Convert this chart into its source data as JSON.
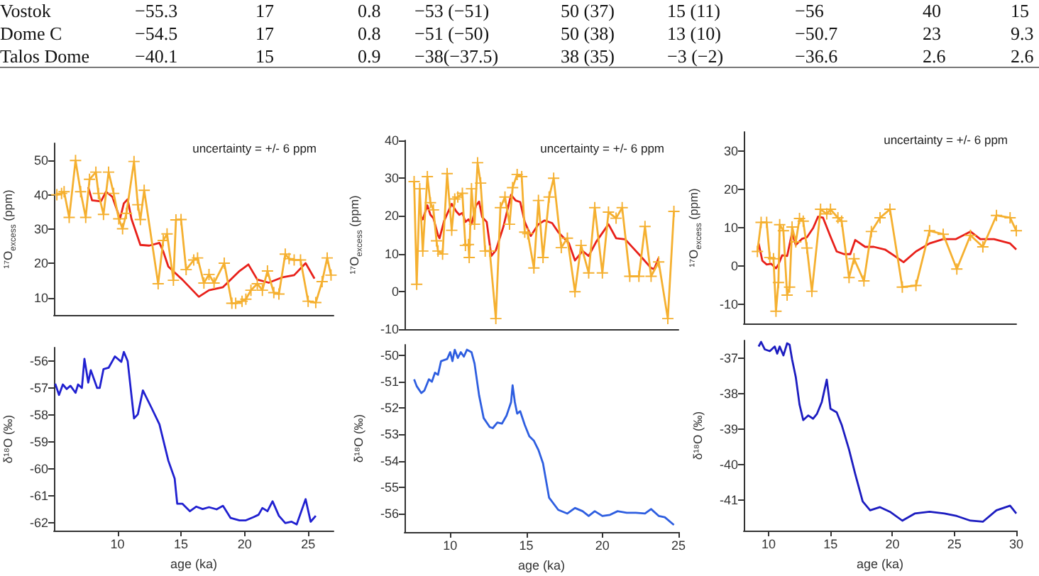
{
  "chart_data": [
    {
      "type": "other",
      "annotations": [
        "Vostok",
        "−55.3",
        "17",
        "0.8",
        "−53 (−51)",
        "50 (37)",
        "15 (11)",
        "−56",
        "40",
        "15",
        "Dome C",
        "−54.5",
        "17",
        "0.8",
        "−51 (−50)",
        "50 (38)",
        "13 (10)",
        "−50.7",
        "23",
        "9.3",
        "Talos Dome",
        "−40.1",
        "15",
        "0.9",
        "−38(−37.5)",
        "38 (35)",
        "−3 (−2)",
        "−36.6",
        "2.6",
        "2.6"
      ]
    },
    {
      "type": "line",
      "ylabel": "¹⁷O$_{excess}$ (ppm)",
      "xlim": [
        5,
        27
      ],
      "xticks": [
        10,
        15,
        20,
        25
      ],
      "ylim": [
        5,
        55
      ],
      "yticks": [
        10,
        20,
        30,
        40,
        50
      ],
      "tick_labels": "y",
      "annotations": [
        "uncertainty = +/- 6 ppm"
      ],
      "series": [
        {
          "color": "#f5b030",
          "marker": "cross",
          "x": [
            5.23,
            5.6,
            5.8,
            6.2,
            6.7,
            7.1,
            7.5,
            7.8,
            8.3,
            8.5,
            8.9,
            9.3,
            9.7,
            10.1,
            10.4,
            10.7,
            11.3,
            11.6,
            11.8,
            12.1,
            13.2,
            13.6,
            13.9,
            14.4,
            14.6,
            15.0,
            15.4,
            16.0,
            16.3,
            16.8,
            17.2,
            17.6,
            18.4,
            19.0,
            19.3,
            19.8,
            20.1,
            20.5,
            21.0,
            21.4,
            21.8,
            22.3,
            22.7,
            23.2,
            23.5,
            23.9,
            24.4,
            25.0,
            25.6,
            26.1,
            26.5,
            26.8
          ],
          "values": [
            40,
            40.4,
            40.9,
            33.4,
            50,
            40.9,
            33.4,
            44.5,
            46.6,
            40.4,
            34.3,
            46.6,
            40.4,
            33,
            30.1,
            34.6,
            49.7,
            37.1,
            32.8,
            41.3,
            14.1,
            26.7,
            28.6,
            15.1,
            32.7,
            32.8,
            18.2,
            21,
            21.6,
            14.3,
            16.8,
            14.3,
            20.1,
            8.4,
            8.4,
            9,
            9.6,
            12.2,
            14.1,
            12.2,
            17.8,
            11.5,
            11.1,
            22.7,
            21.4,
            21,
            21,
            9,
            8.6,
            14.7,
            21.6,
            16.6
          ]
        },
        {
          "color": "#e8201a",
          "marker": "none",
          "x": [
            7.7,
            8.0,
            8.7,
            9.1,
            9.6,
            10.2,
            10.5,
            10.8,
            11.1,
            11.8,
            12.5,
            13.3,
            13.6,
            14.0,
            15.1,
            16.4,
            17.2,
            18.3,
            19.6,
            20.3,
            21.0,
            21.9,
            23.0,
            23.9,
            24.8,
            25.5
          ],
          "values": [
            42.2,
            38.4,
            38.1,
            40.9,
            39.4,
            33,
            37.5,
            38.7,
            33,
            25.4,
            25.2,
            26,
            23.5,
            19.1,
            15.3,
            10.3,
            12.2,
            13.1,
            17.8,
            19.7,
            15.3,
            14.4,
            16,
            16.6,
            20.1,
            15.6
          ]
        }
      ]
    },
    {
      "type": "line",
      "ylabel": "¹⁷O$_{excess}$ (ppm)",
      "xlim": [
        7,
        25
      ],
      "xticks": [
        10,
        15,
        20,
        25
      ],
      "ylim": [
        -10,
        40
      ],
      "yticks": [
        -10,
        0,
        10,
        20,
        30,
        40
      ],
      "tick_labels": "y",
      "annotations": [
        "uncertainty = +/- 6 ppm"
      ],
      "series": [
        {
          "color": "#f5b030",
          "marker": "cross",
          "x": [
            7.63,
            7.8,
            8.0,
            8.2,
            8.5,
            8.7,
            8.9,
            9.1,
            9.2,
            9.5,
            9.8,
            10.1,
            10.3,
            10.5,
            10.8,
            11.0,
            11.2,
            11.25,
            11.4,
            11.6,
            11.8,
            12.0,
            12.3,
            12.6,
            13.0,
            13.3,
            13.6,
            13.9,
            14.1,
            14.4,
            14.7,
            14.9,
            15.1,
            15.5,
            15.8,
            16.1,
            16.5,
            16.8,
            17.3,
            17.7,
            18.2,
            18.6,
            19.1,
            19.5,
            20.0,
            20.4,
            20.9,
            21.3,
            21.8,
            22.4,
            22.8,
            23.2,
            23.7,
            24.3,
            24.7
          ],
          "values": [
            29.1,
            1.9,
            27.2,
            10.7,
            30.4,
            23.5,
            21.6,
            13.4,
            10.7,
            9.9,
            31.2,
            16.2,
            24.5,
            25,
            26,
            12.2,
            12.4,
            9,
            27.2,
            17.8,
            34.1,
            28.7,
            10.7,
            10.7,
            -7.2,
            22.2,
            25,
            17.8,
            27.5,
            31,
            30.4,
            15.7,
            15.3,
            6.2,
            24.1,
            9,
            25,
            30,
            11.6,
            14.1,
            -0.1,
            12.2,
            4.9,
            22.2,
            4.9,
            21,
            19.4,
            22.2,
            4,
            4,
            17.2,
            4,
            7.8,
            -7.2,
            21.2
          ]
        },
        {
          "color": "#e8201a",
          "marker": "none",
          "x": [
            8.1,
            8.2,
            8.5,
            8.7,
            8.9,
            9.2,
            9.3,
            9.6,
            10.1,
            10.4,
            10.6,
            10.8,
            11.0,
            11.2,
            11.4,
            11.7,
            11.9,
            12.1,
            12.4,
            12.7,
            13.0,
            13.5,
            14.0,
            14.3,
            14.6,
            14.9,
            15.3,
            15.8,
            16.2,
            16.7,
            17.1,
            17.8,
            18.2,
            18.7,
            19.1,
            19.6,
            20.4,
            20.9,
            21.5,
            22.0,
            22.5,
            23.2,
            23.4,
            23.7
          ],
          "values": [
            19.7,
            19.1,
            22.8,
            20.3,
            19.4,
            14.9,
            14.1,
            18.7,
            23.2,
            21.2,
            20.3,
            20.8,
            18.4,
            19.1,
            17.8,
            22.8,
            23.8,
            19.7,
            18.4,
            9.4,
            10.9,
            17.2,
            25.6,
            24.1,
            23.7,
            18.4,
            14.7,
            17.8,
            18.8,
            18.1,
            15.7,
            12.8,
            8.2,
            10.7,
            9.4,
            13.2,
            17.8,
            14.1,
            13.8,
            11.6,
            9.4,
            6.2,
            5.9,
            8.9
          ]
        }
      ]
    },
    {
      "type": "line",
      "ylabel": "¹⁷O$_{excess}$ (ppm)",
      "xlim": [
        8,
        30
      ],
      "xticks": [
        10,
        15,
        20,
        25,
        30
      ],
      "ylim": [
        -15,
        35
      ],
      "yticks": [
        -10,
        0,
        10,
        20,
        30
      ],
      "tick_labels": "y",
      "annotations": [
        "uncertainty = +/- 6 ppm"
      ],
      "series": [
        {
          "color": "#f5b030",
          "marker": "cross",
          "x": [
            9.1,
            9.4,
            9.85,
            10.1,
            10.4,
            10.6,
            10.8,
            10.9,
            11.2,
            11.5,
            11.7,
            11.9,
            12.2,
            12.5,
            12.8,
            13.1,
            13.5,
            14.2,
            14.7,
            15.0,
            15.6,
            15.9,
            16.5,
            16.9,
            17.7,
            18.3,
            19.0,
            19.8,
            20.8,
            21.9,
            23.0,
            24.1,
            25.2,
            26.3,
            27.3,
            28.4,
            29.5,
            30.0
          ],
          "values": [
            3.8,
            11.4,
            11.4,
            2.2,
            1.9,
            -11.8,
            -4.3,
            10.8,
            9.2,
            -7.6,
            -5.5,
            10.2,
            6.3,
            12.4,
            11.7,
            4.7,
            -6.6,
            14.8,
            13.6,
            14.8,
            12.6,
            11.7,
            -3,
            1.9,
            -3.9,
            9,
            12.6,
            14.8,
            -5.5,
            -5.1,
            9.2,
            8.3,
            -0.8,
            8,
            5,
            13.2,
            12.6,
            9.2
          ]
        },
        {
          "color": "#e8201a",
          "marker": "none",
          "x": [
            9.2,
            9.5,
            9.85,
            10.2,
            10.6,
            10.8,
            11.1,
            11.5,
            11.9,
            12.2,
            12.7,
            13.1,
            13.6,
            14.0,
            14.4,
            15.0,
            15.5,
            16.1,
            16.6,
            17.0,
            17.8,
            18.5,
            19.4,
            20.1,
            20.9,
            21.9,
            23.0,
            24.1,
            25.1,
            26.3,
            27.1,
            28.2,
            29.5,
            30.0
          ],
          "values": [
            5.9,
            1.4,
            0.4,
            0.6,
            -0.6,
            0.4,
            2.8,
            2.6,
            8.7,
            5.5,
            7.1,
            7.5,
            9.9,
            12.9,
            12.6,
            7.7,
            3.8,
            3.1,
            3.1,
            6.8,
            5,
            5,
            4.3,
            2.8,
            1,
            3.8,
            5.9,
            7,
            7,
            9,
            7,
            7,
            5.9,
            4.3
          ]
        }
      ]
    },
    {
      "type": "line",
      "ylabel": "δ¹⁸O (‰)",
      "xlabel": "age (ka)",
      "xlim": [
        5,
        27
      ],
      "xticks": [
        10,
        15,
        20,
        25
      ],
      "ylim": [
        -62.3,
        -55.5
      ],
      "yticks": [
        -62,
        -61,
        -60,
        -59,
        -58,
        -57,
        -56
      ],
      "series": [
        {
          "color": "#2020d0",
          "marker": "none",
          "x": [
            5.1,
            5.4,
            5.7,
            6.0,
            6.3,
            6.7,
            6.9,
            7.2,
            7.4,
            7.7,
            7.9,
            8.4,
            8.6,
            8.9,
            9.3,
            9.8,
            10.3,
            10.5,
            10.8,
            11.3,
            11.6,
            12.0,
            12.7,
            13.3,
            14.0,
            14.5,
            14.7,
            15.1,
            15.7,
            16.2,
            16.7,
            17.2,
            17.8,
            18.3,
            18.9,
            19.6,
            20.1,
            20.7,
            21.1,
            21.4,
            21.8,
            22.2,
            22.7,
            23.2,
            23.7,
            24.1,
            24.8,
            25.2,
            25.6
          ],
          "values": [
            -56.84,
            -57.26,
            -56.87,
            -57.04,
            -56.92,
            -57.18,
            -56.87,
            -57,
            -55.92,
            -56.8,
            -56.34,
            -57,
            -57,
            -56.3,
            -56.25,
            -55.83,
            -56.03,
            -55.66,
            -56,
            -58.13,
            -57.98,
            -57.09,
            -57.76,
            -58.35,
            -59.7,
            -60.37,
            -61.3,
            -61.3,
            -61.58,
            -61.41,
            -61.5,
            -61.43,
            -61.51,
            -61.38,
            -61.83,
            -61.92,
            -61.92,
            -61.8,
            -61.71,
            -61.46,
            -61.58,
            -61.21,
            -61.75,
            -62.02,
            -61.97,
            -62.07,
            -61.13,
            -61.97,
            -61.75
          ]
        }
      ]
    },
    {
      "type": "line",
      "ylabel": "δ¹⁸O (‰)",
      "xlabel": "age (ka)",
      "xlim": [
        7,
        25
      ],
      "xticks": [
        10,
        15,
        20,
        25
      ],
      "ylim": [
        -56.7,
        -49.6
      ],
      "yticks": [
        -56,
        -55,
        -54,
        -53,
        -52,
        -51,
        -50
      ],
      "series": [
        {
          "color": "#2e5ee0",
          "marker": "none",
          "x": [
            7.63,
            7.8,
            8.1,
            8.3,
            8.6,
            8.8,
            9.0,
            9.2,
            9.4,
            9.8,
            10.0,
            10.15,
            10.3,
            10.5,
            10.7,
            10.9,
            11.1,
            11.4,
            11.6,
            11.9,
            12.2,
            12.6,
            12.8,
            13.1,
            13.4,
            13.7,
            14.0,
            14.1,
            14.25,
            14.4,
            14.6,
            14.9,
            15.2,
            15.5,
            15.8,
            16.1,
            16.5,
            17.1,
            17.7,
            18.2,
            18.7,
            19.1,
            19.5,
            20.0,
            20.5,
            21.0,
            21.6,
            22.2,
            22.8,
            23.2,
            23.7,
            24.1,
            24.7
          ],
          "values": [
            -50.91,
            -51.17,
            -51.43,
            -51.34,
            -50.91,
            -51,
            -50.66,
            -50.74,
            -50.22,
            -50.14,
            -49.88,
            -50.22,
            -49.79,
            -50.1,
            -49.88,
            -50.05,
            -49.79,
            -49.88,
            -50.31,
            -51.52,
            -52.38,
            -52.72,
            -52.76,
            -52.55,
            -52.59,
            -52.29,
            -51.78,
            -51.14,
            -51.78,
            -52.21,
            -52.12,
            -52.64,
            -53.07,
            -53.24,
            -53.59,
            -54.1,
            -55.4,
            -55.86,
            -56,
            -55.79,
            -55.91,
            -56.09,
            -55.91,
            -56.09,
            -56.05,
            -55.91,
            -55.97,
            -55.97,
            -56,
            -55.83,
            -56.09,
            -56.14,
            -56.43
          ]
        }
      ]
    },
    {
      "type": "line",
      "ylabel": "δ¹⁸O (‰)",
      "xlabel": "age (ka)",
      "xlim": [
        8,
        30
      ],
      "xticks": [
        10,
        15,
        20,
        25,
        30
      ],
      "ylim": [
        -41.85,
        -36.5
      ],
      "yticks": [
        -41,
        -40,
        -39,
        -38,
        -37
      ],
      "series": [
        {
          "color": "#1c1cc0",
          "marker": "none",
          "x": [
            9.2,
            9.4,
            9.7,
            10.1,
            10.5,
            10.7,
            10.9,
            11.2,
            11.5,
            11.7,
            11.9,
            12.2,
            12.5,
            12.8,
            13.2,
            13.6,
            13.9,
            14.3,
            14.7,
            15.0,
            15.5,
            15.9,
            16.5,
            17.0,
            17.6,
            18.2,
            19.0,
            19.8,
            20.8,
            21.8,
            23.0,
            24.2,
            25.2,
            26.3,
            27.3,
            28.4,
            29.5,
            30.0
          ],
          "values": [
            -36.67,
            -36.54,
            -36.75,
            -36.8,
            -36.67,
            -36.87,
            -36.67,
            -36.92,
            -36.58,
            -36.62,
            -37.03,
            -37.53,
            -38.3,
            -38.74,
            -38.61,
            -38.7,
            -38.57,
            -38.23,
            -37.6,
            -38.42,
            -38.52,
            -38.87,
            -39.57,
            -40.26,
            -41.03,
            -41.28,
            -41.19,
            -41.32,
            -41.57,
            -41.37,
            -41.32,
            -41.37,
            -41.44,
            -41.57,
            -41.6,
            -41.28,
            -41.15,
            -41.37
          ]
        }
      ]
    }
  ]
}
